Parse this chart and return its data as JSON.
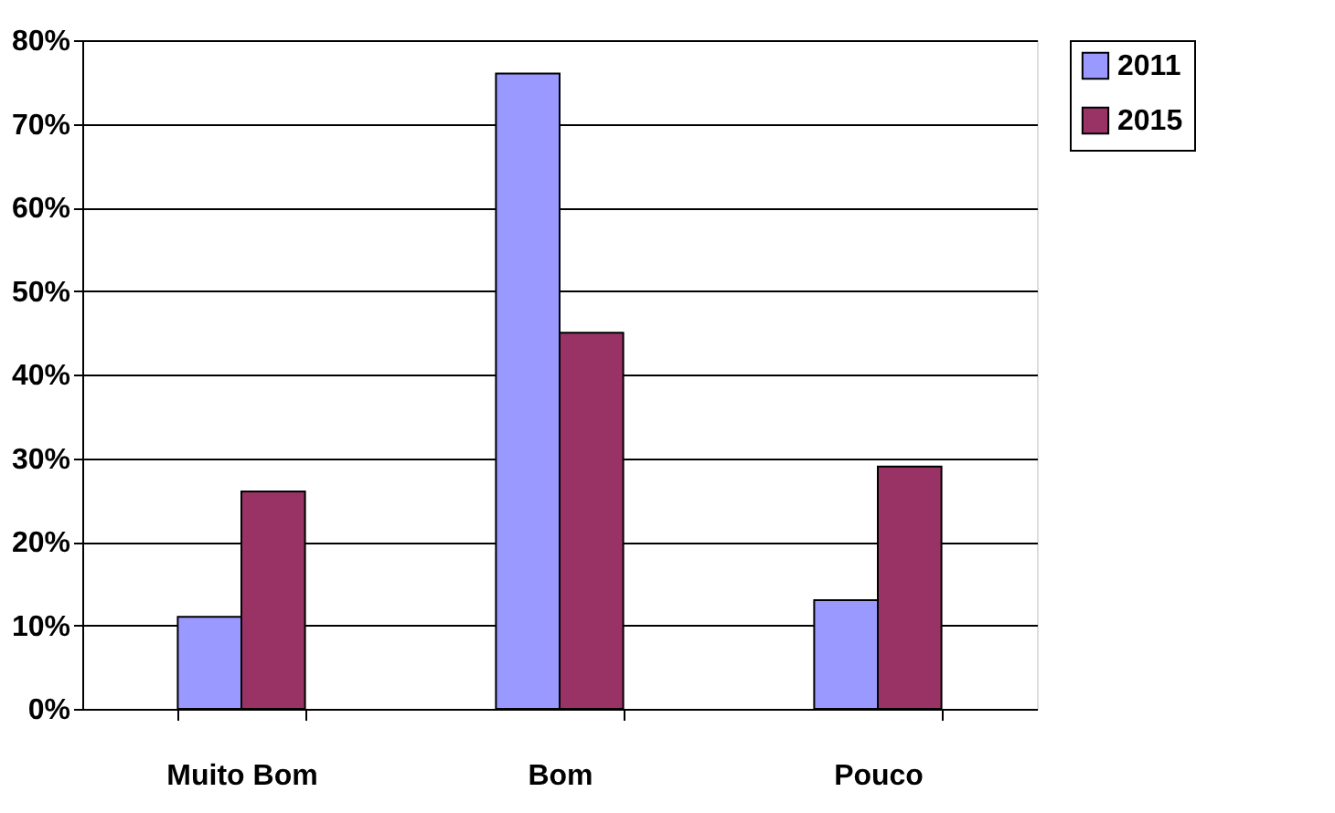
{
  "chart_data": {
    "type": "bar",
    "categories": [
      "Muito Bom",
      "Bom",
      "Pouco"
    ],
    "series": [
      {
        "name": "2011",
        "color": "#9999ff",
        "values": [
          11,
          76,
          13
        ]
      },
      {
        "name": "2015",
        "color": "#993366",
        "values": [
          26,
          45,
          29
        ]
      }
    ],
    "ylim": [
      0,
      80
    ],
    "yticks": [
      {
        "value": 0,
        "label": "0%"
      },
      {
        "value": 10,
        "label": "10%"
      },
      {
        "value": 20,
        "label": "20%"
      },
      {
        "value": 30,
        "label": "30%"
      },
      {
        "value": 40,
        "label": "40%"
      },
      {
        "value": 50,
        "label": "50%"
      },
      {
        "value": 60,
        "label": "60%"
      },
      {
        "value": 70,
        "label": "70%"
      },
      {
        "value": 80,
        "label": "80%"
      }
    ],
    "grid": "y",
    "legend": "right"
  }
}
